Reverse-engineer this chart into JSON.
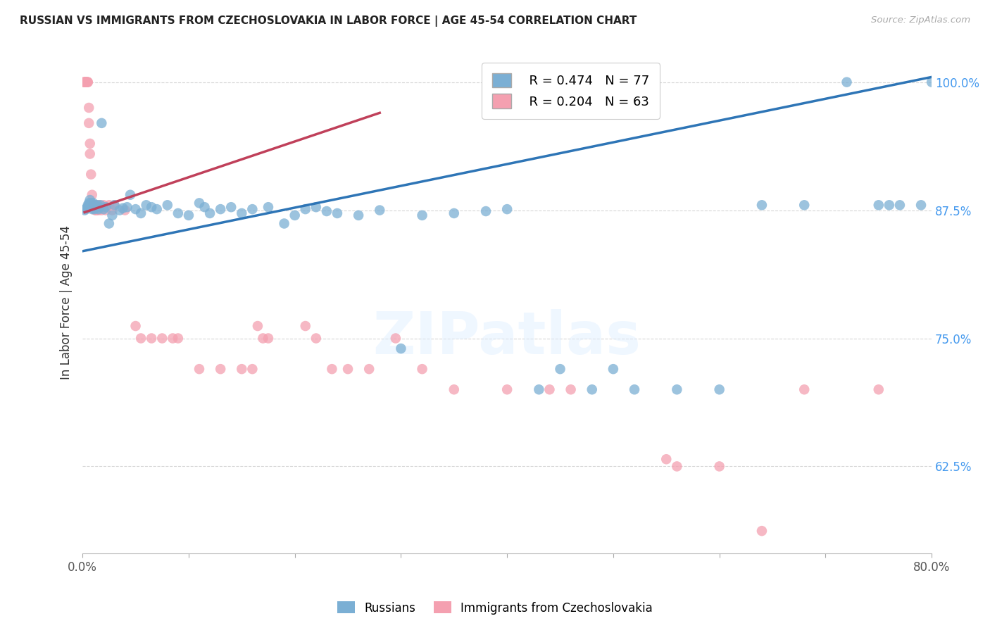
{
  "title": "RUSSIAN VS IMMIGRANTS FROM CZECHOSLOVAKIA IN LABOR FORCE | AGE 45-54 CORRELATION CHART",
  "source": "Source: ZipAtlas.com",
  "ylabel": "In Labor Force | Age 45-54",
  "xlim": [
    0.0,
    0.8
  ],
  "ylim": [
    0.54,
    1.03
  ],
  "yticks": [
    0.625,
    0.75,
    0.875,
    1.0
  ],
  "ytick_labels": [
    "62.5%",
    "75.0%",
    "87.5%",
    "100.0%"
  ],
  "xticks": [
    0.0,
    0.1,
    0.2,
    0.3,
    0.4,
    0.5,
    0.6,
    0.7,
    0.8
  ],
  "xtick_labels": [
    "0.0%",
    "",
    "",
    "",
    "",
    "",
    "",
    "",
    "80.0%"
  ],
  "blue_color": "#7BAFD4",
  "pink_color": "#F4A0B0",
  "blue_line_color": "#2E75B6",
  "pink_line_color": "#C0405A",
  "legend_blue_R": "R = 0.474",
  "legend_blue_N": "N = 77",
  "legend_pink_R": "R = 0.204",
  "legend_pink_N": "N = 63",
  "legend_blue_label": "Russians",
  "legend_pink_label": "Immigrants from Czechoslovakia",
  "watermark": "ZIPatlas",
  "blue_line_x0": 0.0,
  "blue_line_y0": 0.835,
  "blue_line_x1": 0.8,
  "blue_line_y1": 1.005,
  "pink_line_x0": 0.002,
  "pink_line_y0": 0.873,
  "pink_line_x1": 0.28,
  "pink_line_y1": 0.97,
  "blue_x": [
    0.002,
    0.003,
    0.004,
    0.005,
    0.005,
    0.006,
    0.006,
    0.007,
    0.007,
    0.008,
    0.008,
    0.009,
    0.009,
    0.01,
    0.01,
    0.011,
    0.011,
    0.012,
    0.013,
    0.014,
    0.015,
    0.016,
    0.017,
    0.018,
    0.02,
    0.022,
    0.025,
    0.028,
    0.03,
    0.035,
    0.038,
    0.042,
    0.045,
    0.05,
    0.055,
    0.06,
    0.065,
    0.07,
    0.08,
    0.09,
    0.1,
    0.11,
    0.115,
    0.12,
    0.13,
    0.14,
    0.15,
    0.16,
    0.175,
    0.19,
    0.2,
    0.21,
    0.22,
    0.23,
    0.24,
    0.26,
    0.28,
    0.3,
    0.32,
    0.35,
    0.38,
    0.4,
    0.43,
    0.45,
    0.48,
    0.5,
    0.52,
    0.56,
    0.6,
    0.64,
    0.68,
    0.72,
    0.75,
    0.76,
    0.77,
    0.79,
    0.8
  ],
  "blue_y": [
    0.875,
    0.876,
    0.877,
    0.878,
    0.88,
    0.879,
    0.882,
    0.88,
    0.885,
    0.878,
    0.882,
    0.876,
    0.88,
    0.877,
    0.882,
    0.876,
    0.878,
    0.88,
    0.877,
    0.88,
    0.876,
    0.878,
    0.88,
    0.96,
    0.876,
    0.878,
    0.862,
    0.87,
    0.88,
    0.875,
    0.877,
    0.878,
    0.89,
    0.876,
    0.872,
    0.88,
    0.878,
    0.876,
    0.88,
    0.872,
    0.87,
    0.882,
    0.878,
    0.872,
    0.876,
    0.878,
    0.872,
    0.876,
    0.878,
    0.862,
    0.87,
    0.876,
    0.878,
    0.874,
    0.872,
    0.87,
    0.875,
    0.74,
    0.87,
    0.872,
    0.874,
    0.876,
    0.7,
    0.72,
    0.7,
    0.72,
    0.7,
    0.7,
    0.7,
    0.88,
    0.88,
    1.0,
    0.88,
    0.88,
    0.88,
    0.88,
    1.0
  ],
  "pink_x": [
    0.001,
    0.002,
    0.002,
    0.003,
    0.003,
    0.003,
    0.004,
    0.004,
    0.004,
    0.005,
    0.005,
    0.006,
    0.006,
    0.007,
    0.007,
    0.008,
    0.009,
    0.01,
    0.01,
    0.011,
    0.012,
    0.012,
    0.013,
    0.014,
    0.015,
    0.016,
    0.018,
    0.02,
    0.022,
    0.025,
    0.028,
    0.03,
    0.04,
    0.05,
    0.055,
    0.065,
    0.075,
    0.085,
    0.09,
    0.11,
    0.13,
    0.15,
    0.16,
    0.165,
    0.17,
    0.175,
    0.21,
    0.22,
    0.235,
    0.25,
    0.27,
    0.295,
    0.32,
    0.35,
    0.4,
    0.44,
    0.46,
    0.55,
    0.56,
    0.6,
    0.64,
    0.68,
    0.75
  ],
  "pink_y": [
    1.0,
    1.0,
    1.0,
    1.0,
    1.0,
    1.0,
    1.0,
    1.0,
    1.0,
    1.0,
    1.0,
    0.975,
    0.96,
    0.94,
    0.93,
    0.91,
    0.89,
    0.88,
    0.88,
    0.88,
    0.875,
    0.88,
    0.875,
    0.88,
    0.875,
    0.88,
    0.875,
    0.88,
    0.875,
    0.88,
    0.875,
    0.88,
    0.875,
    0.762,
    0.75,
    0.75,
    0.75,
    0.75,
    0.75,
    0.72,
    0.72,
    0.72,
    0.72,
    0.762,
    0.75,
    0.75,
    0.762,
    0.75,
    0.72,
    0.72,
    0.72,
    0.75,
    0.72,
    0.7,
    0.7,
    0.7,
    0.7,
    0.632,
    0.625,
    0.625,
    0.562,
    0.7,
    0.7
  ]
}
